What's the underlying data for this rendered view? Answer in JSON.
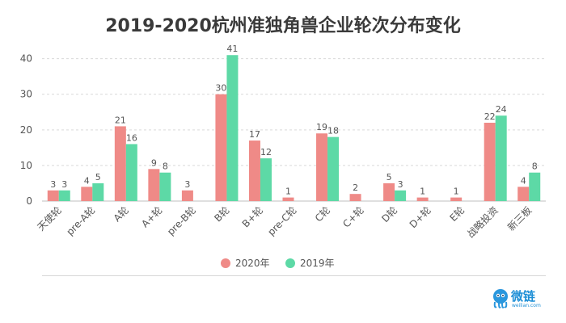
{
  "chart_data": {
    "type": "bar",
    "title": "2019-2020杭州准独角兽企业轮次分布变化",
    "categories": [
      "天使轮",
      "pre-A轮",
      "A轮",
      "A+轮",
      "pre-B轮",
      "B轮",
      "B+轮",
      "pre-C轮",
      "C轮",
      "C+轮",
      "D轮",
      "D+轮",
      "E轮",
      "战略投资",
      "新三板"
    ],
    "series": [
      {
        "name": "2020年",
        "color": "#ef8a87",
        "values": [
          3,
          4,
          21,
          9,
          3,
          30,
          17,
          1,
          19,
          2,
          5,
          1,
          1,
          22,
          4
        ]
      },
      {
        "name": "2019年",
        "color": "#5dd9a6",
        "values": [
          3,
          5,
          16,
          8,
          null,
          41,
          12,
          null,
          18,
          null,
          3,
          null,
          null,
          24,
          8
        ]
      }
    ],
    "yticks": [
      0,
      10,
      20,
      30,
      40
    ],
    "ylim": [
      0,
      44
    ],
    "grid": true,
    "legend_position": "bottom-center"
  },
  "logo": {
    "text": "微链",
    "sub": "weilian.com"
  }
}
